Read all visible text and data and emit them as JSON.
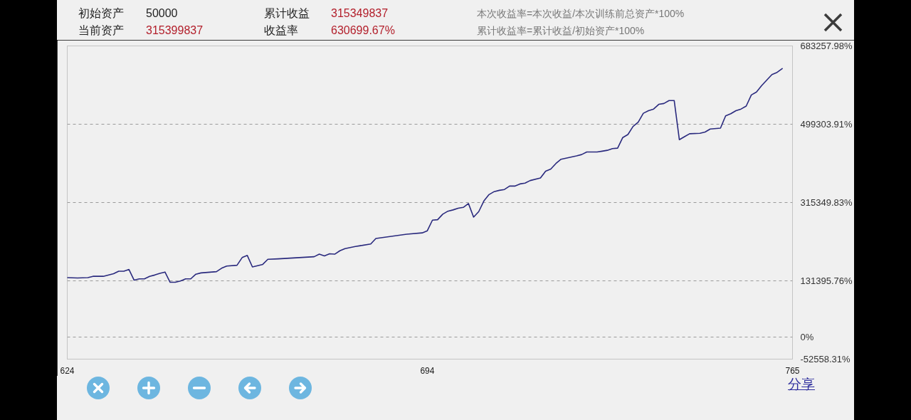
{
  "chart_data": {
    "type": "line",
    "x": [
      624,
      626,
      628,
      629,
      631,
      633,
      634,
      635,
      636,
      637,
      638,
      639,
      640,
      641,
      642,
      643,
      644,
      645,
      646,
      647,
      648,
      649,
      650,
      653,
      654,
      655,
      657,
      658,
      659,
      660,
      662,
      663,
      665,
      672,
      673,
      674,
      675,
      676,
      677,
      678,
      680,
      681,
      683,
      684,
      690,
      693,
      694,
      695,
      696,
      697,
      698,
      699,
      700,
      701,
      702,
      703,
      704,
      705,
      706,
      707,
      708,
      709,
      710,
      711,
      712,
      713,
      714,
      716,
      717,
      718,
      719,
      720,
      723,
      724,
      725,
      727,
      728,
      729,
      730,
      731,
      732,
      733,
      734,
      735,
      736,
      737,
      738,
      739,
      740,
      741,
      742,
      743,
      744,
      745,
      747,
      748,
      749,
      751,
      752,
      753,
      754,
      755,
      756,
      757,
      758,
      759,
      760,
      761,
      762,
      763
    ],
    "series": [
      {
        "color": "#2a2a7e",
        "values": [
          139000,
          138000,
          139000,
          142000,
          142000,
          148000,
          154000,
          154000,
          158000,
          133000,
          136000,
          136000,
          142000,
          145000,
          149000,
          152000,
          128000,
          128000,
          131000,
          136000,
          136000,
          147000,
          150000,
          153000,
          161000,
          166000,
          168000,
          186000,
          191000,
          164000,
          170000,
          182000,
          183000,
          188000,
          194000,
          190000,
          195000,
          194000,
          202000,
          207000,
          212000,
          214000,
          218000,
          231000,
          241000,
          244000,
          249000,
          274000,
          275000,
          288000,
          295000,
          298000,
          302000,
          304000,
          313000,
          281000,
          294000,
          319000,
          334000,
          341000,
          344000,
          346000,
          354000,
          354000,
          359000,
          361000,
          367000,
          373000,
          389000,
          394000,
          407000,
          417000,
          425000,
          428000,
          434000,
          434000,
          436000,
          438000,
          442000,
          443000,
          468000,
          475000,
          494000,
          504000,
          525000,
          531000,
          535000,
          546000,
          548000,
          555000,
          555000,
          463000,
          470000,
          477000,
          478000,
          481000,
          488000,
          490000,
          519000,
          524000,
          531000,
          535000,
          542000,
          568000,
          575000,
          590000,
          603000,
          616000,
          621000,
          630000
        ]
      }
    ],
    "xlim": [
      624,
      765
    ],
    "xticks": [
      624,
      694,
      765
    ],
    "ylim": [
      -52558.31,
      683257.98
    ],
    "yticks": [
      {
        "value": -52558.31,
        "label": "-52558.31%"
      },
      {
        "value": 0,
        "label": "0%"
      },
      {
        "value": 131395.76,
        "label": "131395.76%"
      },
      {
        "value": 315349.83,
        "label": "315349.83%"
      },
      {
        "value": 499303.91,
        "label": "499303.91%"
      },
      {
        "value": 683257.98,
        "label": "683257.98%"
      }
    ],
    "grid": "y",
    "annotations": [
      "初始资产",
      "50000",
      "当前资产",
      "315399837",
      "累计收益",
      "315349837",
      "收益率",
      "630699.67%",
      "本次收益率=本次收益/本次训练前总资产*100%",
      "累计收益率=累计收益/初始资产*100%",
      "分享"
    ]
  }
}
